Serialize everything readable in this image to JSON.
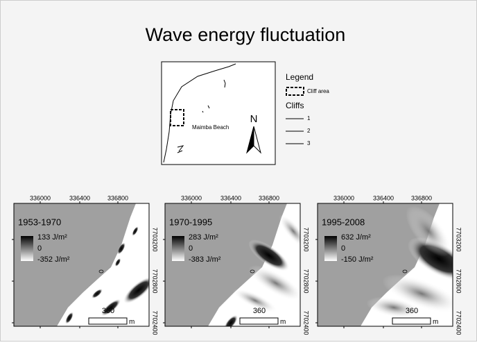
{
  "title": "Wave energy fluctuation",
  "overview": {
    "place_label": "Maimba Beach",
    "north": "N",
    "legend": {
      "title": "Legend",
      "cliff_area": "Cliff area",
      "cliffs_title": "Cliffs",
      "cliffs": [
        "1",
        "2",
        "3"
      ]
    }
  },
  "panels": [
    {
      "period": "1953-1970",
      "max_label": "133 J/m²",
      "mid_label": "0",
      "min_label": "-352 J/m²",
      "scale_label": "360",
      "scale_unit": "m",
      "x_ticks": [
        "336000",
        "336400",
        "336800"
      ],
      "y_ticks": [
        "7703200",
        "7702800",
        "7702400"
      ]
    },
    {
      "period": "1970-1995",
      "max_label": "283 J/m²",
      "mid_label": "0",
      "min_label": "-383 J/m²",
      "scale_label": "360",
      "scale_unit": "m",
      "x_ticks": [
        "336000",
        "336400",
        "336800"
      ],
      "y_ticks": [
        "7703200",
        "7702800",
        "7702400"
      ]
    },
    {
      "period": "1995-2008",
      "max_label": "632 J/m²",
      "mid_label": "0",
      "min_label": "-150 J/m²",
      "scale_label": "360",
      "scale_unit": "m",
      "x_ticks": [
        "336000",
        "336400",
        "336800"
      ],
      "y_ticks": [
        "7703200",
        "7702800",
        "7702400"
      ]
    }
  ]
}
